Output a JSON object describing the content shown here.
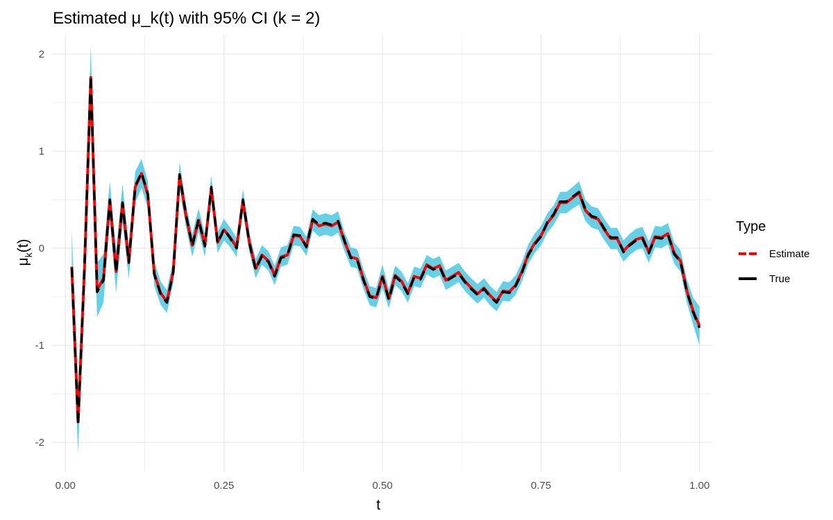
{
  "chart_data": {
    "type": "line",
    "title": "Estimated μ_k(t) with 95% CI (k = 2)",
    "xlabel": "t",
    "ylabel": {
      "base": "μ",
      "sub": "k",
      "suffix": "(t)"
    },
    "xlim": [
      -0.02,
      1.02
    ],
    "ylim": [
      -2.3,
      2.2
    ],
    "x_ticks": [
      0,
      0.25,
      0.5,
      0.75,
      1
    ],
    "x_tick_labels": [
      "0.00",
      "0.25",
      "0.50",
      "0.75",
      "1.00"
    ],
    "y_ticks": [
      -2,
      -1,
      0,
      1,
      2
    ],
    "y_tick_labels": [
      "-2",
      "-1",
      "0",
      "1",
      "2"
    ],
    "grid": true,
    "legend": {
      "title": "Type",
      "position": "right",
      "entries": [
        {
          "label": "Estimate",
          "color": "#ff0000",
          "dashed": true
        },
        {
          "label": "True",
          "color": "#000000",
          "dashed": false
        }
      ]
    },
    "ci_color": "#66d1e6",
    "x": [
      0.01,
      0.02,
      0.03,
      0.04,
      0.05,
      0.06,
      0.07,
      0.08,
      0.09,
      0.1,
      0.11,
      0.12,
      0.13,
      0.14,
      0.15,
      0.16,
      0.17,
      0.18,
      0.19,
      0.2,
      0.21,
      0.22,
      0.23,
      0.24,
      0.25,
      0.26,
      0.27,
      0.28,
      0.29,
      0.3,
      0.31,
      0.32,
      0.33,
      0.34,
      0.35,
      0.36,
      0.37,
      0.38,
      0.39,
      0.4,
      0.41,
      0.42,
      0.43,
      0.44,
      0.45,
      0.46,
      0.47,
      0.48,
      0.49,
      0.5,
      0.51,
      0.52,
      0.53,
      0.54,
      0.55,
      0.56,
      0.57,
      0.58,
      0.59,
      0.6,
      0.61,
      0.62,
      0.63,
      0.64,
      0.65,
      0.66,
      0.67,
      0.68,
      0.69,
      0.7,
      0.71,
      0.72,
      0.73,
      0.74,
      0.75,
      0.76,
      0.77,
      0.78,
      0.79,
      0.8,
      0.81,
      0.82,
      0.83,
      0.84,
      0.85,
      0.86,
      0.87,
      0.88,
      0.89,
      0.9,
      0.91,
      0.92,
      0.93,
      0.94,
      0.95,
      0.96,
      0.97,
      0.98,
      0.99,
      1.0
    ],
    "series": [
      {
        "name": "True",
        "values": [
          -0.2,
          -1.82,
          -0.2,
          1.78,
          -0.45,
          -0.33,
          0.5,
          -0.25,
          0.47,
          -0.15,
          0.64,
          0.78,
          0.56,
          -0.27,
          -0.47,
          -0.56,
          -0.25,
          0.76,
          0.35,
          0.02,
          0.3,
          0.02,
          0.63,
          0.05,
          0.2,
          0.1,
          0.0,
          0.5,
          0.05,
          -0.22,
          -0.08,
          -0.14,
          -0.29,
          -0.1,
          -0.08,
          0.14,
          0.13,
          0.01,
          0.3,
          0.24,
          0.26,
          0.24,
          0.28,
          0.08,
          -0.1,
          -0.12,
          -0.33,
          -0.5,
          -0.52,
          -0.3,
          -0.53,
          -0.29,
          -0.35,
          -0.47,
          -0.3,
          -0.32,
          -0.18,
          -0.22,
          -0.19,
          -0.34,
          -0.3,
          -0.26,
          -0.35,
          -0.42,
          -0.48,
          -0.42,
          -0.5,
          -0.56,
          -0.45,
          -0.46,
          -0.39,
          -0.25,
          -0.07,
          0.04,
          0.12,
          0.27,
          0.35,
          0.48,
          0.48,
          0.53,
          0.58,
          0.4,
          0.33,
          0.31,
          0.2,
          0.11,
          0.11,
          -0.04,
          0.03,
          0.08,
          0.1,
          -0.05,
          0.11,
          0.1,
          0.14,
          -0.06,
          -0.14,
          -0.45,
          -0.66,
          -0.82
        ]
      },
      {
        "name": "Estimate",
        "values": [
          -0.19,
          -1.79,
          -0.21,
          1.76,
          -0.43,
          -0.31,
          0.49,
          -0.24,
          0.46,
          -0.14,
          0.63,
          0.77,
          0.55,
          -0.26,
          -0.46,
          -0.55,
          -0.24,
          0.75,
          0.34,
          0.03,
          0.29,
          0.03,
          0.62,
          0.06,
          0.19,
          0.11,
          0.01,
          0.49,
          0.06,
          -0.21,
          -0.07,
          -0.13,
          -0.28,
          -0.09,
          -0.07,
          0.13,
          0.12,
          0.02,
          0.29,
          0.23,
          0.25,
          0.23,
          0.27,
          0.07,
          -0.09,
          -0.11,
          -0.32,
          -0.49,
          -0.51,
          -0.29,
          -0.52,
          -0.28,
          -0.34,
          -0.46,
          -0.29,
          -0.31,
          -0.17,
          -0.21,
          -0.18,
          -0.33,
          -0.29,
          -0.25,
          -0.34,
          -0.41,
          -0.47,
          -0.41,
          -0.49,
          -0.55,
          -0.44,
          -0.45,
          -0.38,
          -0.24,
          -0.06,
          0.05,
          0.13,
          0.26,
          0.34,
          0.47,
          0.47,
          0.52,
          0.57,
          0.39,
          0.32,
          0.3,
          0.19,
          0.1,
          0.1,
          -0.03,
          0.04,
          0.09,
          0.11,
          -0.04,
          0.12,
          0.11,
          0.15,
          -0.05,
          -0.13,
          -0.44,
          -0.65,
          -0.8
        ]
      }
    ],
    "ci_halfwidth": [
      0.38,
      0.32,
      0.3,
      0.32,
      0.28,
      0.25,
      0.2,
      0.22,
      0.2,
      0.18,
      0.16,
      0.15,
      0.14,
      0.13,
      0.12,
      0.12,
      0.12,
      0.14,
      0.12,
      0.12,
      0.12,
      0.12,
      0.13,
      0.11,
      0.11,
      0.1,
      0.1,
      0.12,
      0.1,
      0.1,
      0.1,
      0.1,
      0.1,
      0.1,
      0.1,
      0.1,
      0.1,
      0.1,
      0.11,
      0.11,
      0.11,
      0.11,
      0.11,
      0.1,
      0.1,
      0.1,
      0.1,
      0.1,
      0.1,
      0.12,
      0.1,
      0.1,
      0.1,
      0.1,
      0.1,
      0.1,
      0.1,
      0.1,
      0.1,
      0.1,
      0.1,
      0.1,
      0.1,
      0.1,
      0.1,
      0.1,
      0.1,
      0.1,
      0.1,
      0.1,
      0.1,
      0.1,
      0.1,
      0.1,
      0.1,
      0.1,
      0.1,
      0.11,
      0.11,
      0.11,
      0.12,
      0.11,
      0.11,
      0.11,
      0.11,
      0.11,
      0.11,
      0.11,
      0.11,
      0.11,
      0.11,
      0.11,
      0.11,
      0.11,
      0.11,
      0.11,
      0.11,
      0.12,
      0.14,
      0.2
    ]
  }
}
